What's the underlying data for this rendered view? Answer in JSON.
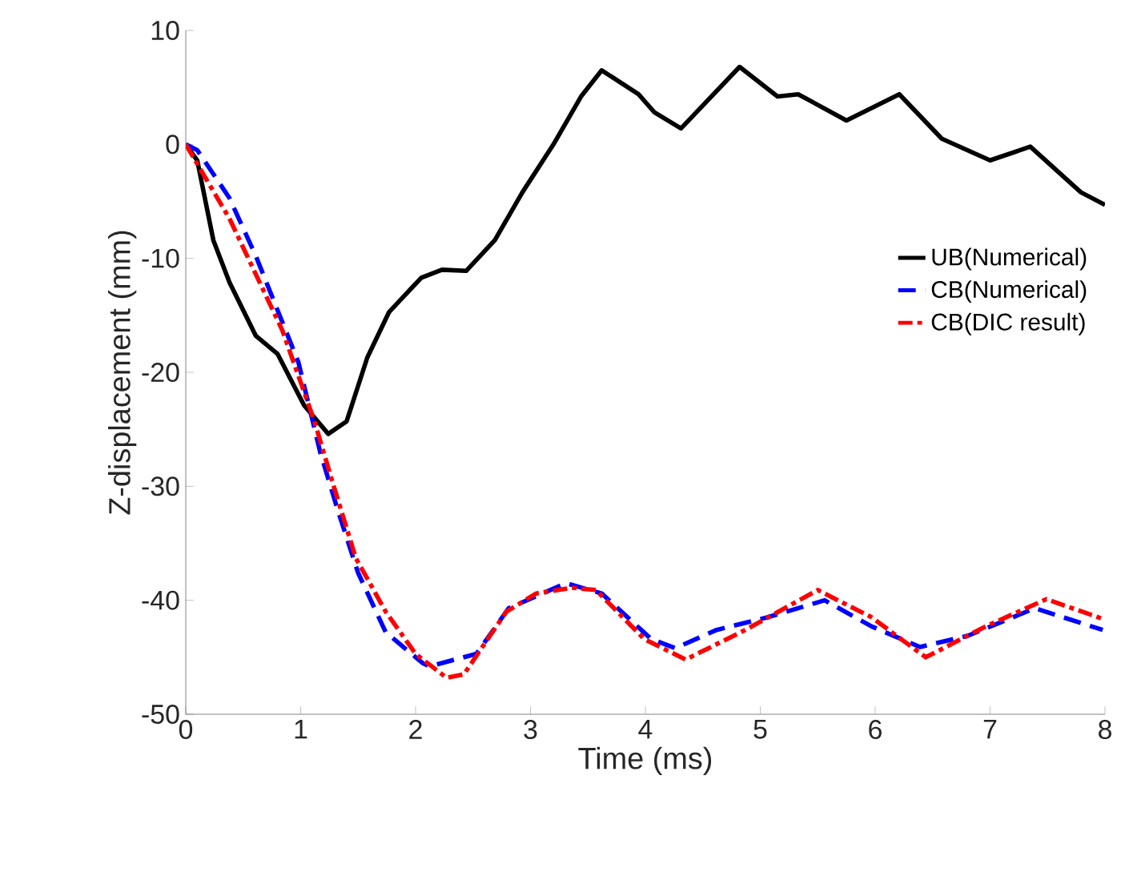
{
  "chart_data": {
    "type": "line",
    "xlabel": "Time (ms)",
    "ylabel": "Z-displacement (mm)",
    "xlim": [
      0,
      8
    ],
    "ylim": [
      -50,
      10
    ],
    "xticks": [
      0,
      1,
      2,
      3,
      4,
      5,
      6,
      7,
      8
    ],
    "yticks": [
      -50,
      -40,
      -30,
      -20,
      -10,
      0,
      10
    ],
    "grid": false,
    "legend": "right",
    "marker": "none",
    "series": [
      {
        "name": "UB(Numerical)",
        "color": "#000000",
        "line_style": "solid",
        "x": [
          0,
          0.1,
          0.24,
          0.38,
          0.61,
          0.8,
          1.03,
          1.24,
          1.4,
          1.58,
          1.77,
          2.05,
          2.23,
          2.44,
          2.69,
          2.93,
          3.2,
          3.44,
          3.62,
          3.94,
          4.08,
          4.31,
          4.82,
          5.15,
          5.33,
          5.75,
          6.21,
          6.58,
          7.0,
          7.35,
          7.79,
          8.0
        ],
        "values": [
          0,
          -1.4,
          -8.4,
          -12.1,
          -16.8,
          -18.4,
          -22.9,
          -25.4,
          -24.3,
          -18.7,
          -14.7,
          -11.7,
          -11.0,
          -11.1,
          -8.4,
          -4.2,
          0,
          4.2,
          6.5,
          4.4,
          2.8,
          1.4,
          6.8,
          4.2,
          4.4,
          2.1,
          4.4,
          0.5,
          -1.4,
          -0.2,
          -4.2,
          -5.3
        ]
      },
      {
        "name": "CB(Numerical)",
        "color": "#0000ff",
        "line_style": "dashed",
        "x": [
          0,
          0.1,
          0.38,
          0.61,
          0.98,
          1.17,
          1.32,
          1.5,
          1.74,
          2.06,
          2.12,
          2.53,
          2.81,
          3.31,
          3.62,
          4.05,
          4.26,
          4.62,
          5.06,
          5.56,
          5.97,
          6.39,
          6.81,
          7.39,
          7.98
        ],
        "values": [
          0,
          -0.5,
          -4.7,
          -9.8,
          -19.1,
          -27,
          -32,
          -37.6,
          -42.8,
          -45.5,
          -45.8,
          -44.7,
          -40.7,
          -38.5,
          -39.4,
          -43.4,
          -44.2,
          -42.6,
          -41.5,
          -40.0,
          -42.3,
          -44.1,
          -43.1,
          -40.7,
          -42.6
        ]
      },
      {
        "name": "CB(DIC result)",
        "color": "#ff0000",
        "line_style": "dashdot",
        "x": [
          0,
          0.38,
          0.84,
          1.12,
          1.27,
          1.48,
          1.74,
          2.0,
          2.27,
          2.42,
          2.79,
          3.05,
          3.36,
          3.57,
          3.99,
          4.35,
          4.87,
          5.5,
          5.97,
          6.44,
          6.96,
          7.49,
          8.0
        ],
        "values": [
          0,
          -6.5,
          -16.3,
          -24.3,
          -29.4,
          -36.3,
          -41.0,
          -44.7,
          -46.8,
          -46.5,
          -41.0,
          -39.4,
          -38.9,
          -39.1,
          -43.4,
          -45.2,
          -42.6,
          -39.1,
          -41.5,
          -45.0,
          -42.3,
          -39.9,
          -41.7
        ]
      }
    ]
  }
}
